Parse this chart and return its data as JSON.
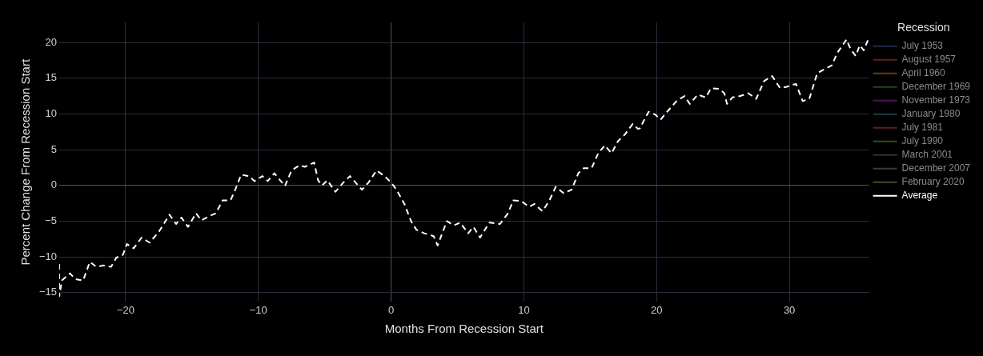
{
  "chart_data": {
    "type": "line",
    "xlabel": "Months From Recession Start",
    "ylabel": "Percent Change From Recession Start",
    "legend_title": "Recession",
    "legend": "top right",
    "grid": true,
    "marker": "none",
    "xlim": [
      -25,
      36
    ],
    "xticks": [
      -20,
      -10,
      0,
      10,
      20,
      30
    ],
    "ylim": [
      -16.3,
      22.8
    ],
    "yticks": [
      -15,
      -10,
      -5,
      0,
      5,
      10,
      15,
      20
    ],
    "series": [
      {
        "name": "July 1953",
        "color": "#1f2a4a"
      },
      {
        "name": "August 1957",
        "color": "#5a1f1f"
      },
      {
        "name": "April 1960",
        "color": "#6a3a15"
      },
      {
        "name": "December 1969",
        "color": "#1a4a1f"
      },
      {
        "name": "November 1973",
        "color": "#4a1550"
      },
      {
        "name": "January 1980",
        "color": "#1a3d4a"
      },
      {
        "name": "July 1981",
        "color": "#5a1f2f"
      },
      {
        "name": "July 1990",
        "color": "#2f4a1f"
      },
      {
        "name": "March 2001",
        "color": "#3a2a2f"
      },
      {
        "name": "December 2007",
        "color": "#3a3a3a"
      },
      {
        "name": "February 2020",
        "color": "#4a4a20"
      },
      {
        "name": "Average",
        "color": "#ffffff",
        "line_style": "dashed",
        "x": [
          -25,
          -25,
          -24.8,
          -24.2,
          -23.8,
          -23.2,
          -22.7,
          -22.2,
          -21.7,
          -21.1,
          -20.7,
          -20.2,
          -19.9,
          -19.4,
          -18.8,
          -18.2,
          -17.5,
          -16.7,
          -16.2,
          -15.8,
          -15.3,
          -14.7,
          -14.3,
          -13.7,
          -13.2,
          -12.7,
          -12.1,
          -11.7,
          -11.3,
          -10.7,
          -10.3,
          -9.7,
          -9.3,
          -8.8,
          -8.0,
          -7.5,
          -6.9,
          -6.5,
          -5.8,
          -5.5,
          -5.2,
          -4.8,
          -4.2,
          -3.6,
          -3.1,
          -2.2,
          -1.7,
          -1.1,
          -0.5,
          0,
          0.4,
          1.0,
          1.5,
          1.9,
          2.5,
          3.2,
          3.5,
          4.2,
          4.7,
          5.2,
          5.8,
          6.2,
          6.7,
          7.4,
          8.2,
          8.8,
          9.2,
          9.8,
          10.4,
          10.8,
          11.4,
          11.9,
          12.4,
          13.0,
          13.6,
          14.1,
          14.5,
          15.1,
          15.6,
          16.1,
          16.6,
          17.1,
          17.6,
          18.2,
          18.6,
          18.75,
          19.1,
          19.4,
          19.9,
          20.3,
          20.7,
          21.5,
          22.1,
          22.5,
          23.1,
          23.7,
          24.1,
          24.7,
          25.1,
          25.3,
          25.7,
          26.3,
          26.9,
          27.5,
          28.1,
          28.7,
          29.3,
          29.8,
          30.5,
          31.0,
          31.5,
          32.1,
          32.7,
          33.2,
          33.6,
          34.3,
          34.6,
          35.0,
          35.3,
          35.6,
          36.0
        ],
        "values": [
          -11.0,
          -15.5,
          -13.3,
          -12.3,
          -13.1,
          -13.3,
          -10.7,
          -11.4,
          -11.2,
          -11.4,
          -10.1,
          -9.7,
          -8.2,
          -8.8,
          -7.3,
          -8.0,
          -6.5,
          -4.1,
          -5.4,
          -4.5,
          -5.8,
          -3.9,
          -4.9,
          -4.3,
          -3.9,
          -2.1,
          -2.1,
          -0.4,
          1.5,
          1.3,
          0.6,
          1.3,
          0.6,
          1.7,
          -0.1,
          2.1,
          2.8,
          2.6,
          3.2,
          0.7,
          0,
          0.7,
          -0.9,
          0.4,
          1.3,
          -0.6,
          0.4,
          2.1,
          1.3,
          0.4,
          -0.6,
          -2.6,
          -5.0,
          -6.2,
          -6.7,
          -7.1,
          -8.4,
          -5.0,
          -5.6,
          -5.2,
          -6.7,
          -5.8,
          -7.3,
          -5.2,
          -5.4,
          -3.9,
          -2.1,
          -2.2,
          -3.0,
          -2.6,
          -3.6,
          -2.2,
          -0.2,
          -1.1,
          -0.6,
          1.7,
          2.4,
          2.4,
          4.5,
          5.6,
          4.5,
          6.2,
          7.1,
          8.6,
          7.9,
          8.0,
          9.3,
          10.3,
          9.9,
          9.2,
          10.1,
          11.8,
          12.5,
          11.4,
          12.7,
          12.3,
          13.6,
          13.5,
          12.9,
          11.4,
          12.3,
          12.5,
          12.9,
          12.1,
          14.6,
          15.3,
          13.6,
          13.8,
          14.2,
          11.8,
          12.1,
          15.7,
          16.3,
          16.8,
          18.5,
          20.4,
          19.1,
          18.1,
          19.6,
          18.9,
          20.7
        ]
      }
    ]
  }
}
